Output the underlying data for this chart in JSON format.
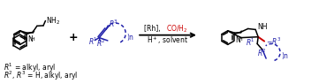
{
  "background_color": "#ffffff",
  "black_color": "#000000",
  "blue_color": "#2222aa",
  "red_color": "#cc0000",
  "fig_width": 3.78,
  "fig_height": 0.95,
  "dpi": 100,
  "arrow_text1_black": "[Rh], ",
  "arrow_text1_red": "CO/H₂",
  "arrow_text2": "H⁺, solvent",
  "label1": "R¹ = alkyl, aryl",
  "label2": "R², R³ = H, alkyl, aryl"
}
